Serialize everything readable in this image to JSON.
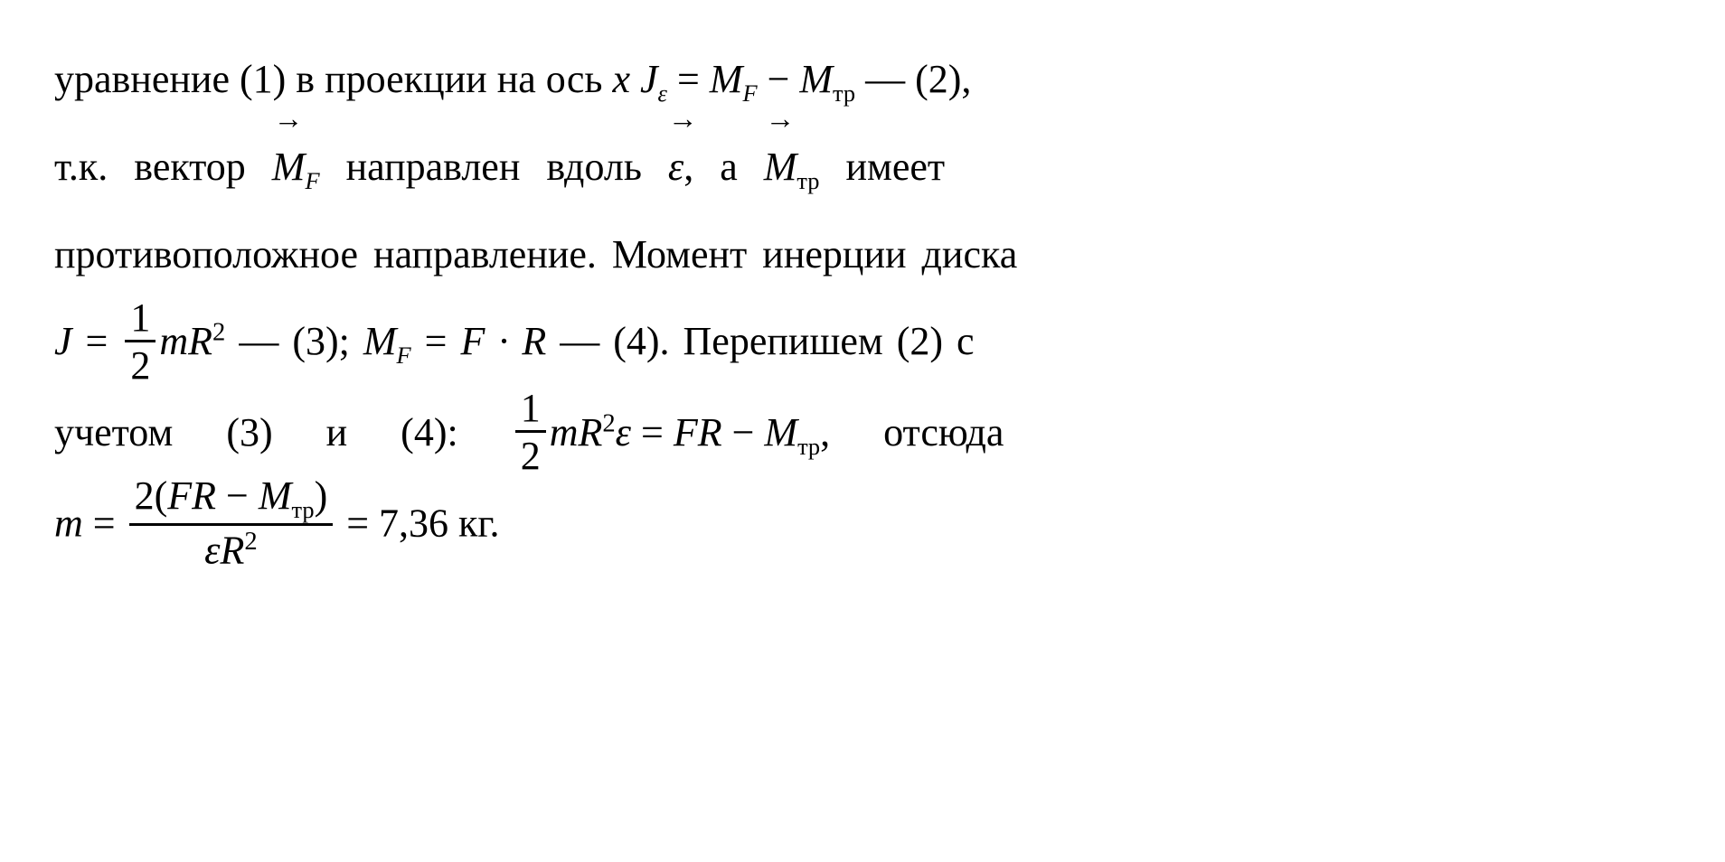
{
  "document": {
    "background_color": "#ffffff",
    "text_color": "#000000",
    "font_family": "Times New Roman",
    "font_size_pt": 32,
    "line_height": 2.2,
    "lines": {
      "l1": {
        "t1": "уравнение (1) в проекции на ось ",
        "var_x": "x",
        "sp1": "  ",
        "J": "J",
        "eps_sub": "ε",
        "eq": " = ",
        "M1": "M",
        "F_sub": "F",
        "minus": " − ",
        "M2": "M",
        "tr_sub": "тр",
        "dash": "  — (2),"
      },
      "l2": {
        "t1": "т.к. вектор ",
        "M1": "M",
        "F_sub": "F",
        "t2": " направлен вдоль ",
        "eps": "ε",
        "t3": ", а ",
        "M2": "M",
        "tr_sub": "тр",
        "t4": " имеет"
      },
      "l3": {
        "t1": "противоположное направление. Момент инерции диска"
      },
      "l4": {
        "J": "J",
        "eq1": " = ",
        "frac1_num": "1",
        "frac1_den": "2",
        "mR2": "mR",
        "sq": "2",
        "dash1": "  — (3);  ",
        "MF": "M",
        "F_sub": "F",
        "eq2": " = ",
        "FR": "F · R",
        "dash2": "  — (4). Перепишем (2) с"
      },
      "l5": {
        "t1": "учетом (3) и (4): ",
        "frac_num": "1",
        "frac_den": "2",
        "mR2eps": "mR",
        "sq": "2",
        "eps": "ε",
        "eq": " = ",
        "FR": "FR",
        "minus": " − ",
        "M": "M",
        "tr_sub": "тр",
        "comma": ",",
        "t2": " отсюда"
      },
      "l6": {
        "m": "m",
        "eq": " = ",
        "frac_num_open": "2(",
        "FR": "FR",
        "minus": " − ",
        "M": "M",
        "tr_sub": "тр",
        "frac_num_close": ")",
        "frac_den_eps": "ε",
        "frac_den_R": "R",
        "frac_den_sq": "2",
        "result": " = 7,36 кг."
      }
    }
  }
}
